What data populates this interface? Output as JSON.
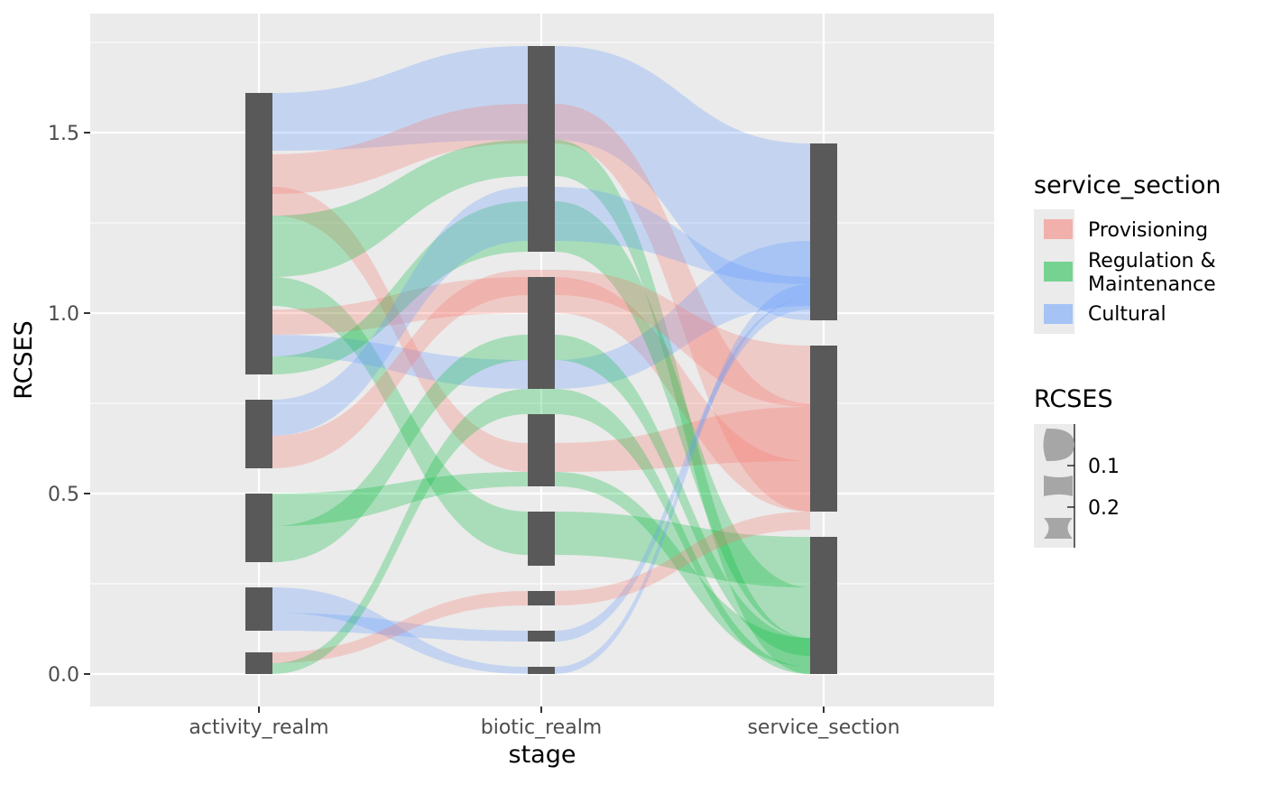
{
  "chart_data": {
    "type": "alluvial",
    "xlabel": "stage",
    "ylabel": "RCSES",
    "ylim": [
      -0.09,
      1.83
    ],
    "y_ticks": [
      0.0,
      0.5,
      1.0,
      1.5
    ],
    "y_tick_labels": [
      "0.0",
      "0.5",
      "1.0",
      "1.5"
    ],
    "grid": true,
    "stages": [
      "activity_realm",
      "biotic_realm",
      "service_section"
    ],
    "strata": {
      "activity_realm": [
        {
          "y0": 0.0,
          "y1": 0.06
        },
        {
          "y0": 0.12,
          "y1": 0.24
        },
        {
          "y0": 0.31,
          "y1": 0.5
        },
        {
          "y0": 0.57,
          "y1": 0.76
        },
        {
          "y0": 0.83,
          "y1": 1.61
        }
      ],
      "biotic_realm": [
        {
          "y0": 0.0,
          "y1": 0.02
        },
        {
          "y0": 0.09,
          "y1": 0.12
        },
        {
          "y0": 0.19,
          "y1": 0.23
        },
        {
          "y0": 0.3,
          "y1": 0.45
        },
        {
          "y0": 0.52,
          "y1": 0.72
        },
        {
          "y0": 0.79,
          "y1": 1.1
        },
        {
          "y0": 1.17,
          "y1": 1.74
        }
      ],
      "service_section": [
        {
          "y0": 0.0,
          "y1": 0.38
        },
        {
          "y0": 0.45,
          "y1": 0.91
        },
        {
          "y0": 0.98,
          "y1": 1.47
        }
      ]
    },
    "flows": [
      {
        "category": "Cultural",
        "segments": [
          [
            1.45,
            1.61
          ],
          [
            1.48,
            1.74
          ],
          [
            0.98,
            1.47
          ]
        ]
      },
      {
        "category": "Provisioning",
        "segments": [
          [
            1.33,
            1.44
          ],
          [
            1.47,
            1.58
          ],
          [
            0.45,
            0.75
          ]
        ]
      },
      {
        "category": "Provisioning",
        "segments": [
          [
            1.27,
            1.35
          ],
          [
            0.56,
            0.64
          ],
          [
            0.59,
            0.74
          ]
        ]
      },
      {
        "category": "Regulation & Maintenance",
        "segments": [
          [
            1.1,
            1.27
          ],
          [
            1.38,
            1.48
          ],
          [
            0.0,
            0.1
          ]
        ]
      },
      {
        "category": "Regulation & Maintenance",
        "segments": [
          [
            1.02,
            1.1
          ],
          [
            0.33,
            0.45
          ],
          [
            0.24,
            0.38
          ]
        ]
      },
      {
        "category": "Provisioning",
        "segments": [
          [
            0.94,
            1.01
          ],
          [
            1.0,
            1.1
          ],
          [
            0.45,
            0.59
          ]
        ]
      },
      {
        "category": "Cultural",
        "segments": [
          [
            0.88,
            0.94
          ],
          [
            0.79,
            0.87
          ],
          [
            1.02,
            1.2
          ]
        ]
      },
      {
        "category": "Regulation & Maintenance",
        "segments": [
          [
            0.83,
            0.88
          ],
          [
            1.17,
            1.31
          ],
          [
            0.1,
            0.24
          ]
        ]
      },
      {
        "category": "Cultural",
        "segments": [
          [
            0.66,
            0.76
          ],
          [
            1.2,
            1.35
          ],
          [
            1.08,
            1.1
          ]
        ]
      },
      {
        "category": "Provisioning",
        "segments": [
          [
            0.57,
            0.66
          ],
          [
            1.05,
            1.12
          ],
          [
            0.74,
            0.91
          ]
        ]
      },
      {
        "category": "Regulation & Maintenance",
        "segments": [
          [
            0.41,
            0.5
          ],
          [
            0.52,
            0.56
          ],
          [
            0.02,
            0.1
          ]
        ]
      },
      {
        "category": "Regulation & Maintenance",
        "segments": [
          [
            0.31,
            0.41
          ],
          [
            0.87,
            0.94
          ],
          [
            0.05,
            0.1
          ]
        ]
      },
      {
        "category": "Cultural",
        "segments": [
          [
            0.17,
            0.24
          ],
          [
            0.0,
            0.02
          ],
          [
            1.04,
            1.08
          ]
        ]
      },
      {
        "category": "Cultural",
        "segments": [
          [
            0.12,
            0.17
          ],
          [
            0.09,
            0.12
          ],
          [
            1.01,
            1.04
          ]
        ]
      },
      {
        "category": "Provisioning",
        "segments": [
          [
            0.03,
            0.06
          ],
          [
            0.19,
            0.23
          ],
          [
            0.4,
            0.45
          ]
        ]
      },
      {
        "category": "Regulation & Maintenance",
        "segments": [
          [
            0.0,
            0.03
          ],
          [
            0.72,
            0.79
          ],
          [
            0.0,
            0.02
          ]
        ]
      }
    ],
    "legends": [
      {
        "title": "service_section",
        "entries": [
          {
            "label": "Provisioning",
            "color": "#F8766D"
          },
          {
            "label": "Regulation &\nMaintenance",
            "color": "#00BA38"
          },
          {
            "label": "Cultural",
            "color": "#619CFF"
          }
        ]
      },
      {
        "title": "RCSES",
        "entries": [
          {
            "label": "0.1"
          },
          {
            "label": "0.2"
          }
        ]
      }
    ],
    "colors": {
      "panel_background": "#EBEBEB",
      "grid": "#FFFFFF",
      "stratum_fill": "#595959",
      "legend_key_background": "#EBEBEB",
      "legend_shape": "#A6A6A6"
    }
  }
}
